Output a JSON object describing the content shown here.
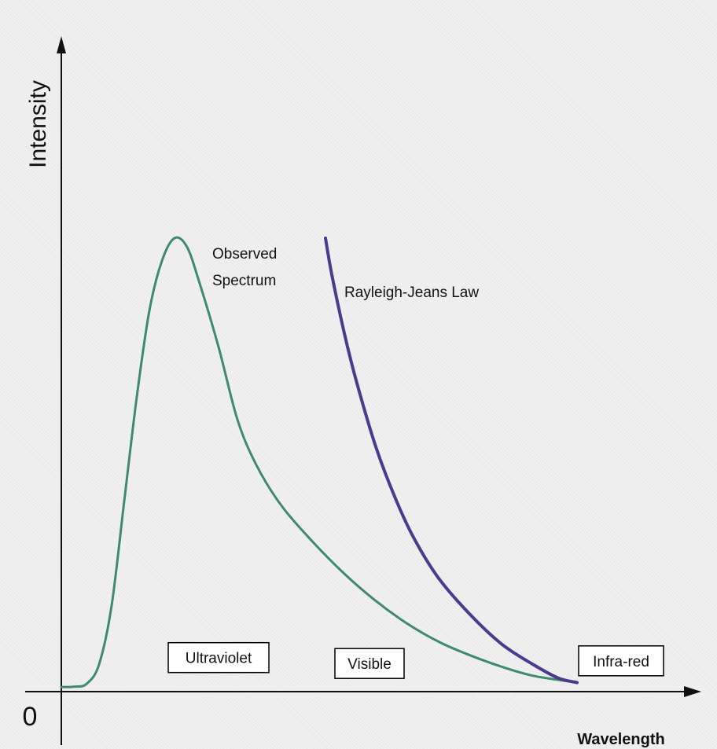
{
  "chart_data": {
    "type": "line",
    "xlabel": "Wavelength",
    "ylabel": "Intensity",
    "origin_label": "0",
    "series": [
      {
        "name": "Observed Spectrum",
        "color": "#3f8a6b",
        "points": [
          [
            0.0,
            0.01
          ],
          [
            0.02,
            0.011
          ],
          [
            0.04,
            0.017
          ],
          [
            0.06,
            0.06
          ],
          [
            0.08,
            0.19
          ],
          [
            0.1,
            0.42
          ],
          [
            0.12,
            0.65
          ],
          [
            0.14,
            0.84
          ],
          [
            0.16,
            0.95
          ],
          [
            0.18,
            1.0
          ],
          [
            0.2,
            0.98
          ],
          [
            0.22,
            0.9
          ],
          [
            0.25,
            0.76
          ],
          [
            0.28,
            0.6
          ],
          [
            0.31,
            0.5
          ],
          [
            0.35,
            0.41
          ],
          [
            0.4,
            0.33
          ],
          [
            0.45,
            0.26
          ],
          [
            0.5,
            0.2
          ],
          [
            0.55,
            0.15
          ],
          [
            0.6,
            0.11
          ],
          [
            0.65,
            0.08
          ],
          [
            0.7,
            0.055
          ],
          [
            0.75,
            0.035
          ],
          [
            0.82,
            0.02
          ]
        ]
      },
      {
        "name": "Rayleigh-Jeans Law",
        "color": "#4a3b8c",
        "points": [
          [
            0.42,
            1.0
          ],
          [
            0.43,
            0.92
          ],
          [
            0.45,
            0.79
          ],
          [
            0.47,
            0.68
          ],
          [
            0.5,
            0.54
          ],
          [
            0.53,
            0.43
          ],
          [
            0.56,
            0.34
          ],
          [
            0.6,
            0.25
          ],
          [
            0.65,
            0.17
          ],
          [
            0.7,
            0.105
          ],
          [
            0.75,
            0.06
          ],
          [
            0.79,
            0.03
          ],
          [
            0.82,
            0.02
          ]
        ]
      }
    ],
    "annotations": [
      {
        "text": "Rayleigh-Jeans Law",
        "x": 0.45,
        "y": 0.87
      },
      {
        "text": "Observed Spectrum",
        "lines": [
          "Observed",
          "Spectrum"
        ],
        "x": 0.24,
        "y": 0.955
      }
    ],
    "regions": [
      {
        "text": "Ultraviolet",
        "x": 0.25,
        "y": 0.075
      },
      {
        "text": "Visible",
        "x": 0.49,
        "y": 0.062
      },
      {
        "text": "Infra-red",
        "x": 0.89,
        "y": 0.068
      }
    ]
  }
}
